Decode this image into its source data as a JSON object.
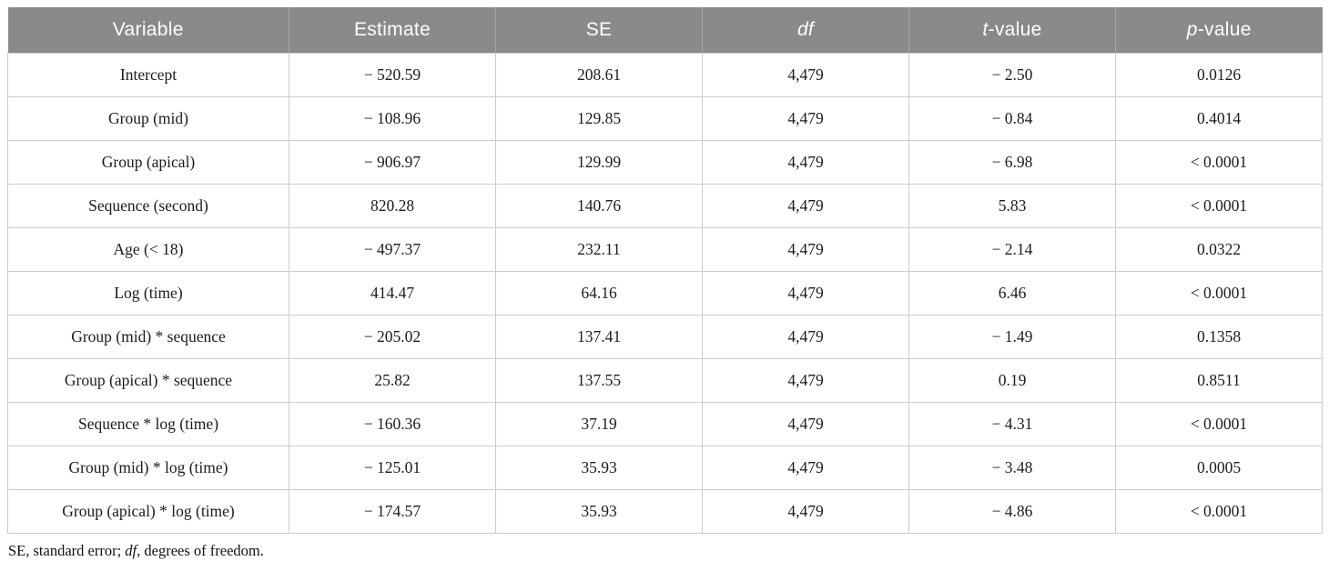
{
  "colors": {
    "header_bg": "#8a8a8a",
    "header_text": "#ffffff",
    "header_divider": "#a6a6a6",
    "body_text": "#1c1c1c",
    "border": "#cccccc"
  },
  "table": {
    "headers": [
      {
        "slug": "variable",
        "segments": [
          {
            "text": "Variable",
            "italic": false
          }
        ]
      },
      {
        "slug": "estimate",
        "segments": [
          {
            "text": "Estimate",
            "italic": false
          }
        ]
      },
      {
        "slug": "se",
        "segments": [
          {
            "text": "SE",
            "italic": false
          }
        ]
      },
      {
        "slug": "df",
        "segments": [
          {
            "text": "df",
            "italic": true
          }
        ]
      },
      {
        "slug": "t-value",
        "segments": [
          {
            "text": "t",
            "italic": true
          },
          {
            "text": "-value",
            "italic": false
          }
        ]
      },
      {
        "slug": "p-value",
        "segments": [
          {
            "text": "p",
            "italic": true
          },
          {
            "text": "-value",
            "italic": false
          }
        ]
      }
    ],
    "rows": [
      [
        "Intercept",
        "− 520.59",
        "208.61",
        "4,479",
        "− 2.50",
        "0.0126"
      ],
      [
        "Group (mid)",
        "− 108.96",
        "129.85",
        "4,479",
        "− 0.84",
        "0.4014"
      ],
      [
        "Group (apical)",
        "− 906.97",
        "129.99",
        "4,479",
        "− 6.98",
        "< 0.0001"
      ],
      [
        "Sequence (second)",
        "820.28",
        "140.76",
        "4,479",
        "5.83",
        "< 0.0001"
      ],
      [
        "Age (< 18)",
        "− 497.37",
        "232.11",
        "4,479",
        "− 2.14",
        "0.0322"
      ],
      [
        "Log (time)",
        "414.47",
        "64.16",
        "4,479",
        "6.46",
        "< 0.0001"
      ],
      [
        "Group (mid) * sequence",
        "− 205.02",
        "137.41",
        "4,479",
        "− 1.49",
        "0.1358"
      ],
      [
        "Group (apical) * sequence",
        "25.82",
        "137.55",
        "4,479",
        "0.19",
        "0.8511"
      ],
      [
        "Sequence * log (time)",
        "− 160.36",
        "37.19",
        "4,479",
        "− 4.31",
        "< 0.0001"
      ],
      [
        "Group (mid) * log (time)",
        "− 125.01",
        "35.93",
        "4,479",
        "− 3.48",
        "0.0005"
      ],
      [
        "Group (apical) * log (time)",
        "− 174.57",
        "35.93",
        "4,479",
        "− 4.86",
        "< 0.0001"
      ]
    ],
    "footnote_segments": [
      {
        "text": "SE, standard error; ",
        "italic": false
      },
      {
        "text": "df",
        "italic": true
      },
      {
        "text": ", degrees of freedom.",
        "italic": false
      }
    ]
  }
}
